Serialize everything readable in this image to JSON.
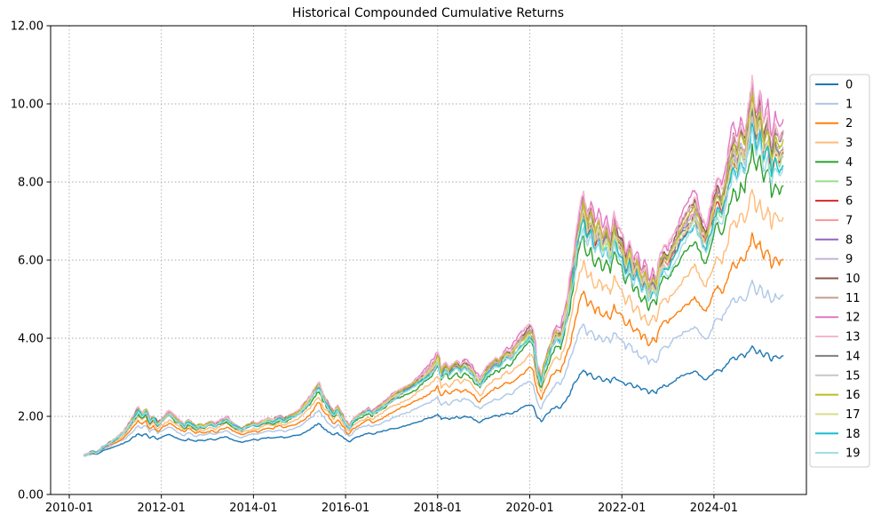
{
  "chart_data": {
    "type": "line",
    "title": "Historical Compounded Cumulative Returns",
    "xlabel": "",
    "ylabel": "",
    "grid": true,
    "grid_style": "dotted",
    "legend_position": "outside-right-top",
    "background_color": "#ffffff",
    "grid_color": "#aaaaaa",
    "spine_color": "#000000",
    "ylim": [
      0,
      12
    ],
    "xlim_years": [
      2009.6,
      2026.0
    ],
    "y_ticks": [
      0,
      2,
      4,
      6,
      8,
      10,
      12
    ],
    "y_tick_labels": [
      "0.00",
      "2.00",
      "4.00",
      "6.00",
      "8.00",
      "10.00",
      "12.00"
    ],
    "x_tick_years": [
      2010,
      2012,
      2014,
      2016,
      2018,
      2020,
      2022,
      2024
    ],
    "x_tick_labels": [
      "2010-01",
      "2012-01",
      "2014-01",
      "2016-01",
      "2018-01",
      "2020-01",
      "2022-01",
      "2024-01"
    ],
    "note": "20 cumulative-return series starting at 1.0 in 2010-04 and ending mid-2025. Values below are monthly samples of the central band curve (series 9); each series i is modeled as base^exponent (read from chart: series keep rank order, series 0 lowest ~3.5 at end, band 5-19 clustered 8.3-9.6, peak ~10.8 in late 2024).",
    "transform": "series_value[k] = base[k] ^ exponent",
    "x": [
      2010.33,
      2010.42,
      2010.5,
      2010.58,
      2010.67,
      2010.75,
      2010.83,
      2010.92,
      2011.0,
      2011.08,
      2011.17,
      2011.25,
      2011.33,
      2011.42,
      2011.5,
      2011.58,
      2011.67,
      2011.75,
      2011.83,
      2011.92,
      2012.0,
      2012.08,
      2012.17,
      2012.25,
      2012.33,
      2012.42,
      2012.5,
      2012.58,
      2012.67,
      2012.75,
      2012.83,
      2012.92,
      2013.0,
      2013.08,
      2013.17,
      2013.25,
      2013.33,
      2013.42,
      2013.5,
      2013.58,
      2013.67,
      2013.75,
      2013.83,
      2013.92,
      2014.0,
      2014.08,
      2014.17,
      2014.25,
      2014.33,
      2014.42,
      2014.5,
      2014.58,
      2014.67,
      2014.75,
      2014.83,
      2014.92,
      2015.0,
      2015.08,
      2015.17,
      2015.25,
      2015.33,
      2015.42,
      2015.5,
      2015.58,
      2015.67,
      2015.75,
      2015.83,
      2015.92,
      2016.0,
      2016.08,
      2016.17,
      2016.25,
      2016.33,
      2016.42,
      2016.5,
      2016.58,
      2016.67,
      2016.75,
      2016.83,
      2016.92,
      2017.0,
      2017.08,
      2017.17,
      2017.25,
      2017.33,
      2017.42,
      2017.5,
      2017.58,
      2017.67,
      2017.75,
      2017.83,
      2017.92,
      2018.0,
      2018.08,
      2018.17,
      2018.25,
      2018.33,
      2018.42,
      2018.5,
      2018.58,
      2018.67,
      2018.75,
      2018.83,
      2018.92,
      2019.0,
      2019.08,
      2019.17,
      2019.25,
      2019.33,
      2019.42,
      2019.5,
      2019.58,
      2019.67,
      2019.75,
      2019.83,
      2019.92,
      2020.0,
      2020.08,
      2020.17,
      2020.25,
      2020.33,
      2020.42,
      2020.5,
      2020.58,
      2020.67,
      2020.75,
      2020.83,
      2020.92,
      2021.0,
      2021.08,
      2021.17,
      2021.25,
      2021.33,
      2021.42,
      2021.5,
      2021.58,
      2021.67,
      2021.75,
      2021.83,
      2021.92,
      2022.0,
      2022.08,
      2022.17,
      2022.25,
      2022.33,
      2022.42,
      2022.5,
      2022.58,
      2022.67,
      2022.75,
      2022.83,
      2022.92,
      2023.0,
      2023.08,
      2023.17,
      2023.25,
      2023.33,
      2023.42,
      2023.5,
      2023.58,
      2023.67,
      2023.75,
      2023.83,
      2023.92,
      2024.0,
      2024.08,
      2024.17,
      2024.25,
      2024.33,
      2024.42,
      2024.5,
      2024.58,
      2024.67,
      2024.75,
      2024.83,
      2024.92,
      2025.0,
      2025.08,
      2025.17,
      2025.25,
      2025.33,
      2025.42,
      2025.5
    ],
    "base": [
      1.0,
      1.04,
      1.1,
      1.06,
      1.14,
      1.22,
      1.28,
      1.35,
      1.42,
      1.5,
      1.58,
      1.7,
      1.85,
      2.02,
      2.18,
      2.05,
      2.15,
      1.88,
      1.98,
      1.8,
      1.9,
      2.0,
      2.1,
      2.02,
      1.92,
      1.84,
      1.76,
      1.88,
      1.8,
      1.72,
      1.78,
      1.74,
      1.8,
      1.84,
      1.78,
      1.84,
      1.9,
      1.95,
      1.85,
      1.78,
      1.72,
      1.68,
      1.74,
      1.78,
      1.82,
      1.78,
      1.84,
      1.88,
      1.92,
      1.88,
      1.94,
      1.98,
      1.92,
      1.98,
      2.02,
      2.06,
      2.12,
      2.22,
      2.35,
      2.48,
      2.65,
      2.8,
      2.55,
      2.38,
      2.2,
      2.08,
      2.22,
      2.02,
      1.85,
      1.72,
      1.9,
      1.98,
      2.05,
      2.12,
      2.18,
      2.1,
      2.18,
      2.24,
      2.32,
      2.4,
      2.48,
      2.54,
      2.6,
      2.66,
      2.72,
      2.78,
      2.86,
      2.94,
      3.02,
      3.1,
      3.2,
      3.32,
      3.5,
      3.1,
      3.28,
      3.14,
      3.26,
      3.34,
      3.22,
      3.36,
      3.28,
      3.18,
      3.0,
      2.88,
      3.05,
      3.18,
      3.28,
      3.4,
      3.35,
      3.5,
      3.62,
      3.58,
      3.74,
      3.86,
      3.98,
      4.1,
      4.2,
      4.05,
      3.2,
      2.92,
      3.35,
      3.65,
      3.95,
      4.15,
      4.05,
      4.45,
      4.95,
      5.6,
      6.3,
      6.95,
      7.4,
      6.8,
      7.1,
      6.55,
      6.85,
      6.45,
      6.7,
      6.3,
      6.9,
      6.5,
      6.4,
      5.9,
      6.2,
      5.7,
      5.9,
      5.45,
      5.65,
      5.2,
      5.5,
      5.3,
      5.9,
      6.1,
      6.0,
      6.25,
      6.45,
      6.65,
      6.85,
      7.0,
      7.15,
      7.3,
      7.0,
      6.7,
      6.55,
      6.95,
      7.4,
      7.7,
      7.45,
      7.9,
      8.4,
      8.9,
      8.6,
      9.1,
      8.8,
      9.4,
      10.15,
      9.3,
      9.8,
      9.0,
      9.4,
      8.6,
      9.1,
      8.8,
      9.0
    ],
    "series": [
      {
        "name": "0",
        "color": "#1f77b4",
        "exponent": 0.575,
        "end_value": 3.54
      },
      {
        "name": "1",
        "color": "#aec7e8",
        "exponent": 0.737,
        "end_value": 5.05
      },
      {
        "name": "2",
        "color": "#ff7f0e",
        "exponent": 0.819,
        "end_value": 6.05
      },
      {
        "name": "3",
        "color": "#ffbb78",
        "exponent": 0.889,
        "end_value": 7.05
      },
      {
        "name": "4",
        "color": "#2ca02c",
        "exponent": 0.944,
        "end_value": 7.96
      },
      {
        "name": "5",
        "color": "#98df8a",
        "exponent": 0.977,
        "end_value": 8.56
      },
      {
        "name": "6",
        "color": "#d62728",
        "exponent": 0.987,
        "end_value": 8.75
      },
      {
        "name": "7",
        "color": "#ff9896",
        "exponent": 0.995,
        "end_value": 8.91
      },
      {
        "name": "8",
        "color": "#9467bd",
        "exponent": 1.005,
        "end_value": 9.1
      },
      {
        "name": "9",
        "color": "#c5b0d5",
        "exponent": 1.0,
        "end_value": 9.0
      },
      {
        "name": "10",
        "color": "#8c564b",
        "exponent": 1.015,
        "end_value": 9.3
      },
      {
        "name": "11",
        "color": "#c49c94",
        "exponent": 1.01,
        "end_value": 9.2
      },
      {
        "name": "12",
        "color": "#e377c2",
        "exponent": 1.027,
        "end_value": 9.55
      },
      {
        "name": "13",
        "color": "#f7b6d2",
        "exponent": 1.022,
        "end_value": 9.45
      },
      {
        "name": "14",
        "color": "#7f7f7f",
        "exponent": 0.992,
        "end_value": 8.85
      },
      {
        "name": "15",
        "color": "#c7c7c7",
        "exponent": 0.982,
        "end_value": 8.66
      },
      {
        "name": "16",
        "color": "#bcbd22",
        "exponent": 1.003,
        "end_value": 9.06
      },
      {
        "name": "17",
        "color": "#dbdb8d",
        "exponent": 0.99,
        "end_value": 8.81
      },
      {
        "name": "18",
        "color": "#17becf",
        "exponent": 0.974,
        "end_value": 8.51
      },
      {
        "name": "19",
        "color": "#9edae5",
        "exponent": 0.966,
        "end_value": 8.36
      }
    ]
  }
}
